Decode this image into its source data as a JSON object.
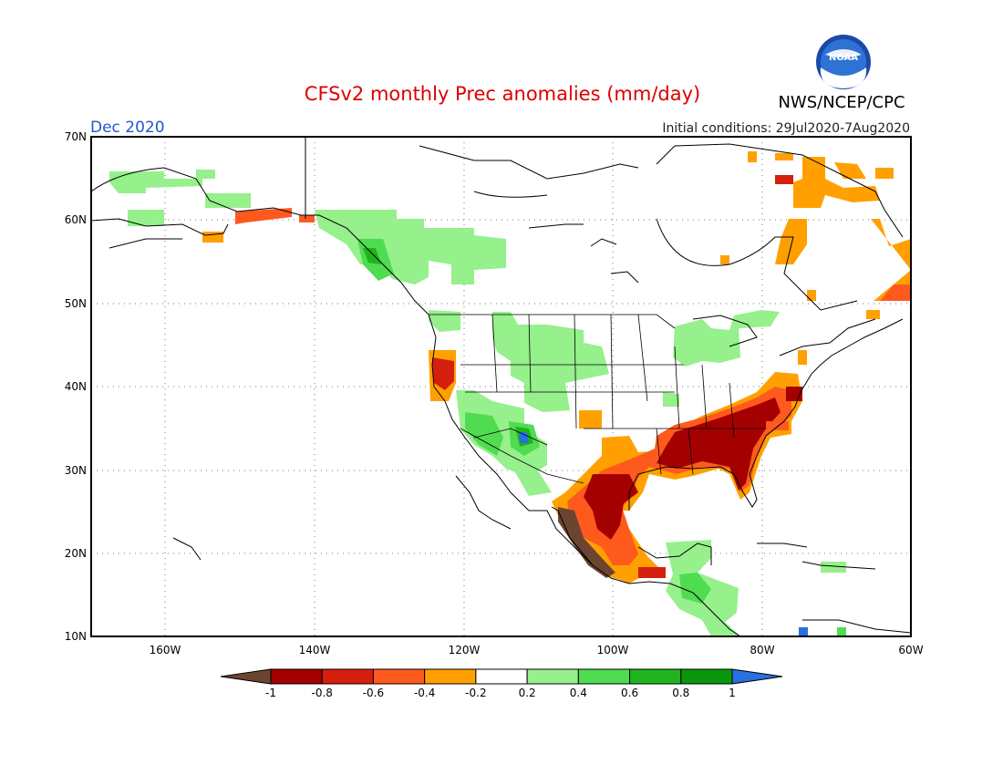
{
  "header": {
    "title": "CFSv2 monthly Prec anomalies (mm/day)",
    "agency": "NWS/NCEP/CPC",
    "logo_text": "NOAA",
    "month": "Dec 2020",
    "initial_conditions": "Initial conditions: 29Jul2020-7Aug2020"
  },
  "colors": {
    "title": "#dd0000",
    "month": "#2255cc"
  },
  "map": {
    "lat_labels": [
      "70N",
      "60N",
      "50N",
      "40N",
      "30N",
      "20N",
      "10N"
    ],
    "lon_labels": [
      "160W",
      "140W",
      "120W",
      "100W",
      "80W",
      "60W"
    ]
  },
  "legend": {
    "tick_labels": [
      "-1",
      "-0.8",
      "-0.6",
      "-0.4",
      "-0.2",
      "0.2",
      "0.4",
      "0.6",
      "0.8",
      "1"
    ],
    "colors": [
      "#6b4532",
      "#a50000",
      "#d61e0f",
      "#ff5a1e",
      "#ffa000",
      "#ffffff",
      "#96f08c",
      "#50dc50",
      "#1eb41e",
      "#0a960a",
      "#2a6fe0"
    ]
  }
}
